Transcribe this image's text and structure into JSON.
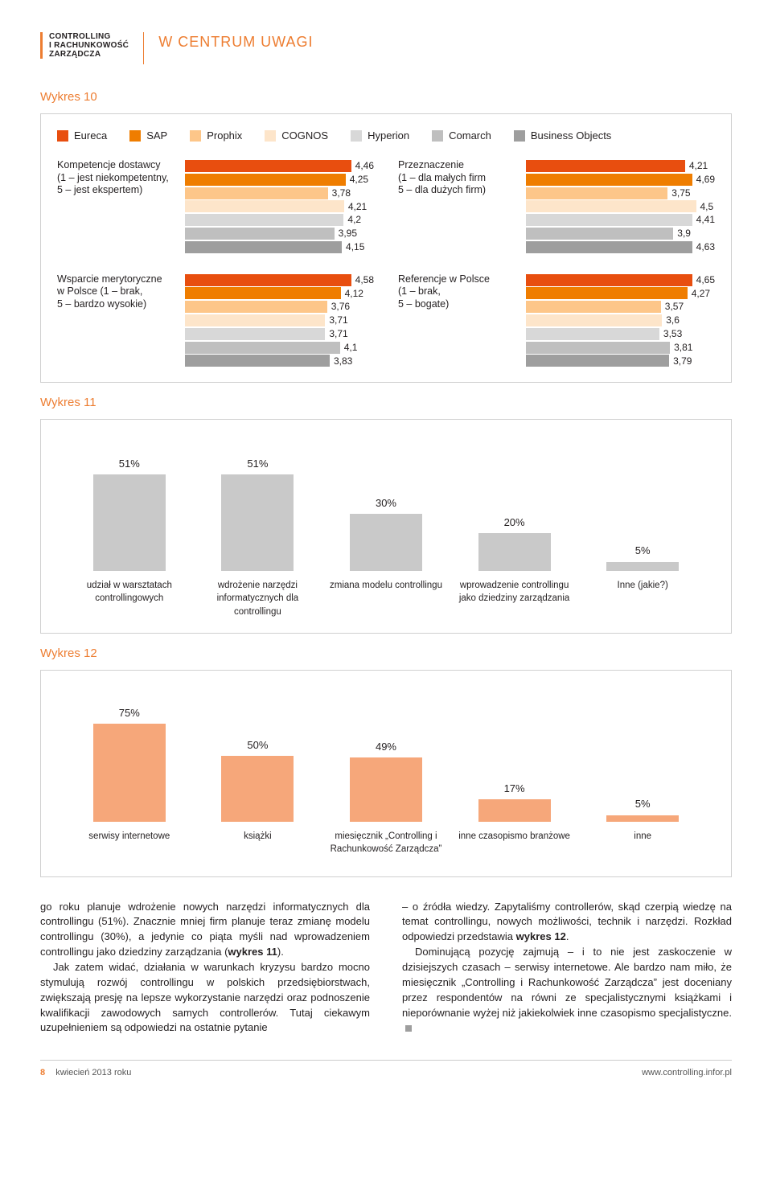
{
  "colors": {
    "accent": "#ed7d31",
    "grey_text": "#231f20",
    "border": "#d0d0d0",
    "series": [
      "#e84e0f",
      "#ef7d00",
      "#fdc689",
      "#fde5ca",
      "#d8d8d8",
      "#bfbfbf",
      "#9e9e9e"
    ],
    "grey_bar": "#c9c9c9",
    "orange_bar": "#f6a77a"
  },
  "header": {
    "logo": "CONTROLLING\ni RACHUNKOWOŚĆ\nZARZĄDCZA",
    "section": "W CENTRUM UWAGI"
  },
  "wykres10": {
    "title": "Wykres 10",
    "legend": [
      "Eureca",
      "SAP",
      "Prophix",
      "COGNOS",
      "Hyperion",
      "Comarch",
      "Business Objects"
    ],
    "panels": [
      {
        "label": "Kompetencje dostawcy\n(1 – jest niekompetentny,\n5 – jest ekspertem)",
        "values": [
          4.46,
          4.25,
          3.78,
          4.21,
          4.2,
          3.95,
          4.15
        ]
      },
      {
        "label": "Przeznaczenie\n(1 – dla małych firm\n5 – dla dużych firm)",
        "values": [
          4.21,
          4.69,
          3.75,
          4.5,
          4.41,
          3.9,
          4.63
        ]
      },
      {
        "label": "Wsparcie merytoryczne\nw Polsce (1 – brak,\n5 – bardzo wysokie)",
        "values": [
          4.58,
          4.12,
          3.76,
          3.71,
          3.71,
          4.1,
          3.83
        ]
      },
      {
        "label": "Referencje w Polsce\n(1 – brak,\n5 – bogate)",
        "values": [
          4.65,
          4.27,
          3.57,
          3.6,
          3.53,
          3.81,
          3.79
        ]
      }
    ],
    "max": 5
  },
  "wykres11": {
    "title": "Wykres 11",
    "bars": [
      {
        "label": "udział w warsztatach controllingowych",
        "value": 51,
        "text": "51%"
      },
      {
        "label": "wdrożenie narzędzi informatycznych dla controllingu",
        "value": 51,
        "text": "51%"
      },
      {
        "label": "zmiana modelu controllingu",
        "value": 30,
        "text": "30%"
      },
      {
        "label": "wprowadzenie controllingu jako dziedziny zarządzania",
        "value": 20,
        "text": "20%"
      },
      {
        "label": "Inne (jakie?)",
        "value": 5,
        "text": "5%"
      }
    ],
    "max": 55,
    "bar_color": "#c9c9c9"
  },
  "wykres12": {
    "title": "Wykres 12",
    "bars": [
      {
        "label": "serwisy internetowe",
        "value": 75,
        "text": "75%"
      },
      {
        "label": "książki",
        "value": 50,
        "text": "50%"
      },
      {
        "label": "miesięcznik „Controlling i Rachunkowość Zarządcza”",
        "value": 49,
        "text": "49%"
      },
      {
        "label": "inne czasopismo branżowe",
        "value": 17,
        "text": "17%"
      },
      {
        "label": "inne",
        "value": 5,
        "text": "5%"
      }
    ],
    "max": 80,
    "bar_color": "#f6a77a"
  },
  "body": {
    "left": [
      "go roku planuje wdrożenie nowych narzędzi informatycznych dla controllingu (51%). Znacznie mniej firm planuje teraz zmianę modelu controllingu (30%), a jedynie co piąta myśli nad wprowadzeniem controllingu jako dziedziny zarządzania (wykres 11).",
      "Jak zatem widać, działania w warunkach kryzysu bardzo mocno stymulują rozwój controllingu w polskich przedsiębiorstwach, zwiększają presję na lepsze wykorzystanie narzędzi oraz podnoszenie kwalifikacji zawodowych samych controllerów. Tutaj ciekawym uzupełnieniem są odpowiedzi na ostatnie pytanie"
    ],
    "right": [
      "– o źródła wiedzy. Zapytaliśmy controllerów, skąd czerpią wiedzę na temat controllingu, nowych możliwości, technik i narzędzi. Rozkład odpowiedzi przedstawia wykres 12.",
      "Dominującą pozycję zajmują – i to nie jest zaskoczenie w dzisiejszych czasach – serwisy internetowe. Ale bardzo nam miło, że miesięcznik „Controlling i Rachunkowość Zarządcza” jest doceniany przez respondentów na równi ze specjalistycznymi książkami i nieporównanie wyżej niż jakiekolwiek inne czasopismo specjalistyczne."
    ]
  },
  "footer": {
    "left_page": "8",
    "left_text": "kwiecień 2013 roku",
    "right": "www.controlling.infor.pl"
  }
}
